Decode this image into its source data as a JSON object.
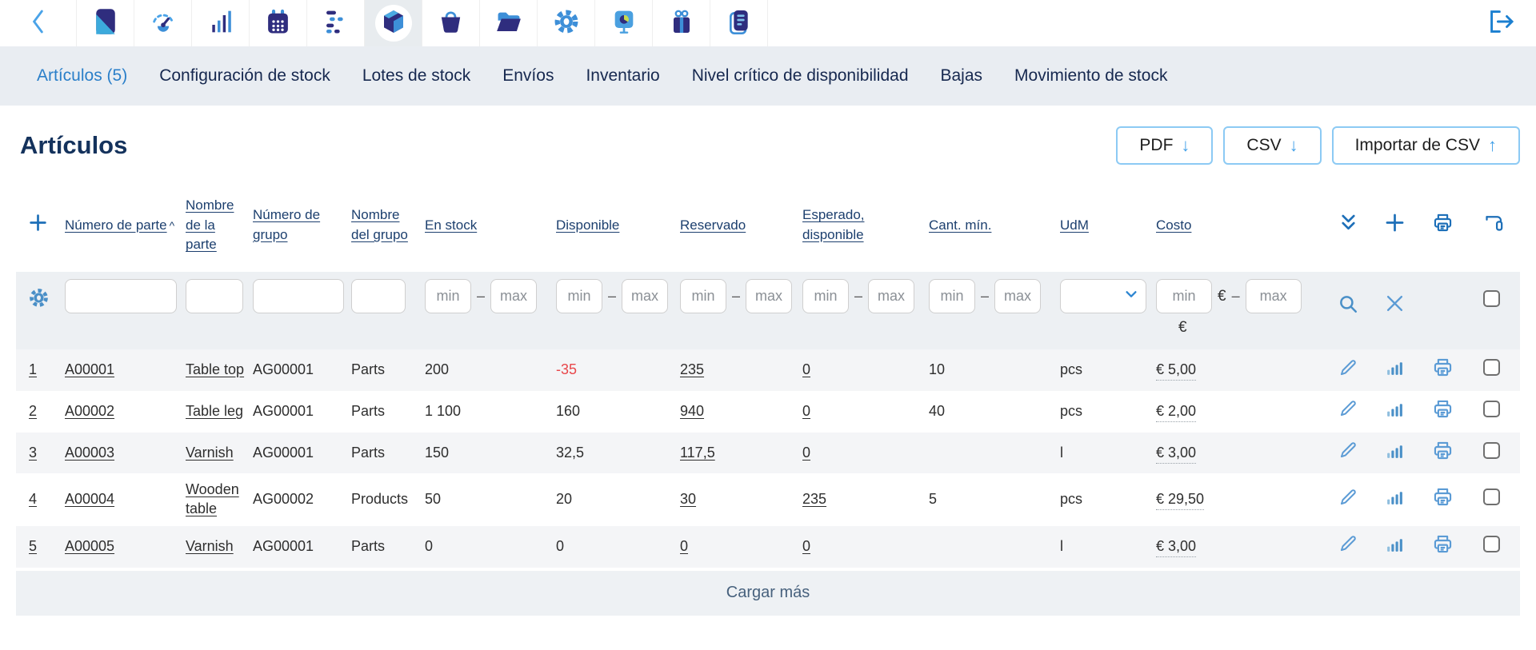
{
  "colors": {
    "accent_blue": "#42a0e8",
    "navy": "#14325c",
    "active_tab": "#2a7fc9",
    "band_bg": "#e9edf2",
    "filter_bg": "#edf0f3",
    "row_stripe": "#f4f5f7",
    "negative": "#e8474b",
    "icon_blue": "#5b9bd5",
    "icon_navy": "#2f2d7e"
  },
  "toolbar": {
    "icons": [
      "chevron-left",
      "app-logo",
      "gauge",
      "bar-chart",
      "calendar",
      "gantt",
      "cube-stock",
      "basket",
      "folder",
      "gear",
      "presentation-screen",
      "gift",
      "book"
    ],
    "active_icon": "cube-stock",
    "logout_icon": "logout-arrow"
  },
  "nav": {
    "tabs": [
      {
        "label": "Artículos (5)",
        "active": true
      },
      {
        "label": "Configuración de stock"
      },
      {
        "label": "Lotes de stock"
      },
      {
        "label": "Envíos"
      },
      {
        "label": "Inventario"
      },
      {
        "label": "Nivel crítico de disponibilidad"
      },
      {
        "label": "Bajas"
      },
      {
        "label": "Movimiento de stock"
      }
    ]
  },
  "page": {
    "title": "Artículos",
    "buttons": [
      {
        "label": "PDF",
        "arrow_char": "↓"
      },
      {
        "label": "CSV",
        "arrow_char": "↓"
      },
      {
        "label": "Importar de CSV",
        "arrow_char": "↑"
      }
    ]
  },
  "table": {
    "headers": {
      "part_no": "Número de parte",
      "sort_indicator": "^",
      "part_name": "Nombre de la parte",
      "group_no": "Número de grupo",
      "group_name": "Nombre del grupo",
      "in_stock": "En stock",
      "available": "Disponible",
      "reserved": "Reservado",
      "expected": "Esperado, disponible",
      "min_qty": "Cant. mín.",
      "uom": "UdM",
      "cost": "Costo"
    },
    "filters": {
      "min_placeholder": "min",
      "max_placeholder": "max",
      "currency": "€",
      "range_dash": "–"
    },
    "rows": [
      {
        "num": "1",
        "part_no": "A00001",
        "part_name": "Table top",
        "group_no": "AG00001",
        "group_name": "Parts",
        "in_stock": "200",
        "available": "-35",
        "negative": true,
        "reserved": "235",
        "expected": "0",
        "min_qty": "10",
        "uom": "pcs",
        "cost": "€ 5,00"
      },
      {
        "num": "2",
        "part_no": "A00002",
        "part_name": "Table leg",
        "group_no": "AG00001",
        "group_name": "Parts",
        "in_stock": "1 100",
        "available": "160",
        "reserved": "940",
        "expected": "0",
        "min_qty": "40",
        "uom": "pcs",
        "cost": "€ 2,00"
      },
      {
        "num": "3",
        "part_no": "A00003",
        "part_name": "Varnish",
        "group_no": "AG00001",
        "group_name": "Parts",
        "in_stock": "150",
        "available": "32,5",
        "reserved": "117,5",
        "expected": "0",
        "min_qty": "",
        "uom": "l",
        "cost": "€ 3,00"
      },
      {
        "num": "4",
        "part_no": "A00004",
        "part_name": "Wooden table",
        "group_no": "AG00002",
        "group_name": "Products",
        "in_stock": "50",
        "available": "20",
        "reserved": "30",
        "expected": "235",
        "min_qty": "5",
        "uom": "pcs",
        "cost": "€ 29,50"
      },
      {
        "num": "5",
        "part_no": "A00005",
        "part_name": "Varnish",
        "group_no": "AG00001",
        "group_name": "Parts",
        "in_stock": "0",
        "available": "0",
        "reserved": "0",
        "expected": "0",
        "min_qty": "",
        "uom": "l",
        "cost": "€ 3,00"
      }
    ],
    "load_more": "Cargar más"
  }
}
